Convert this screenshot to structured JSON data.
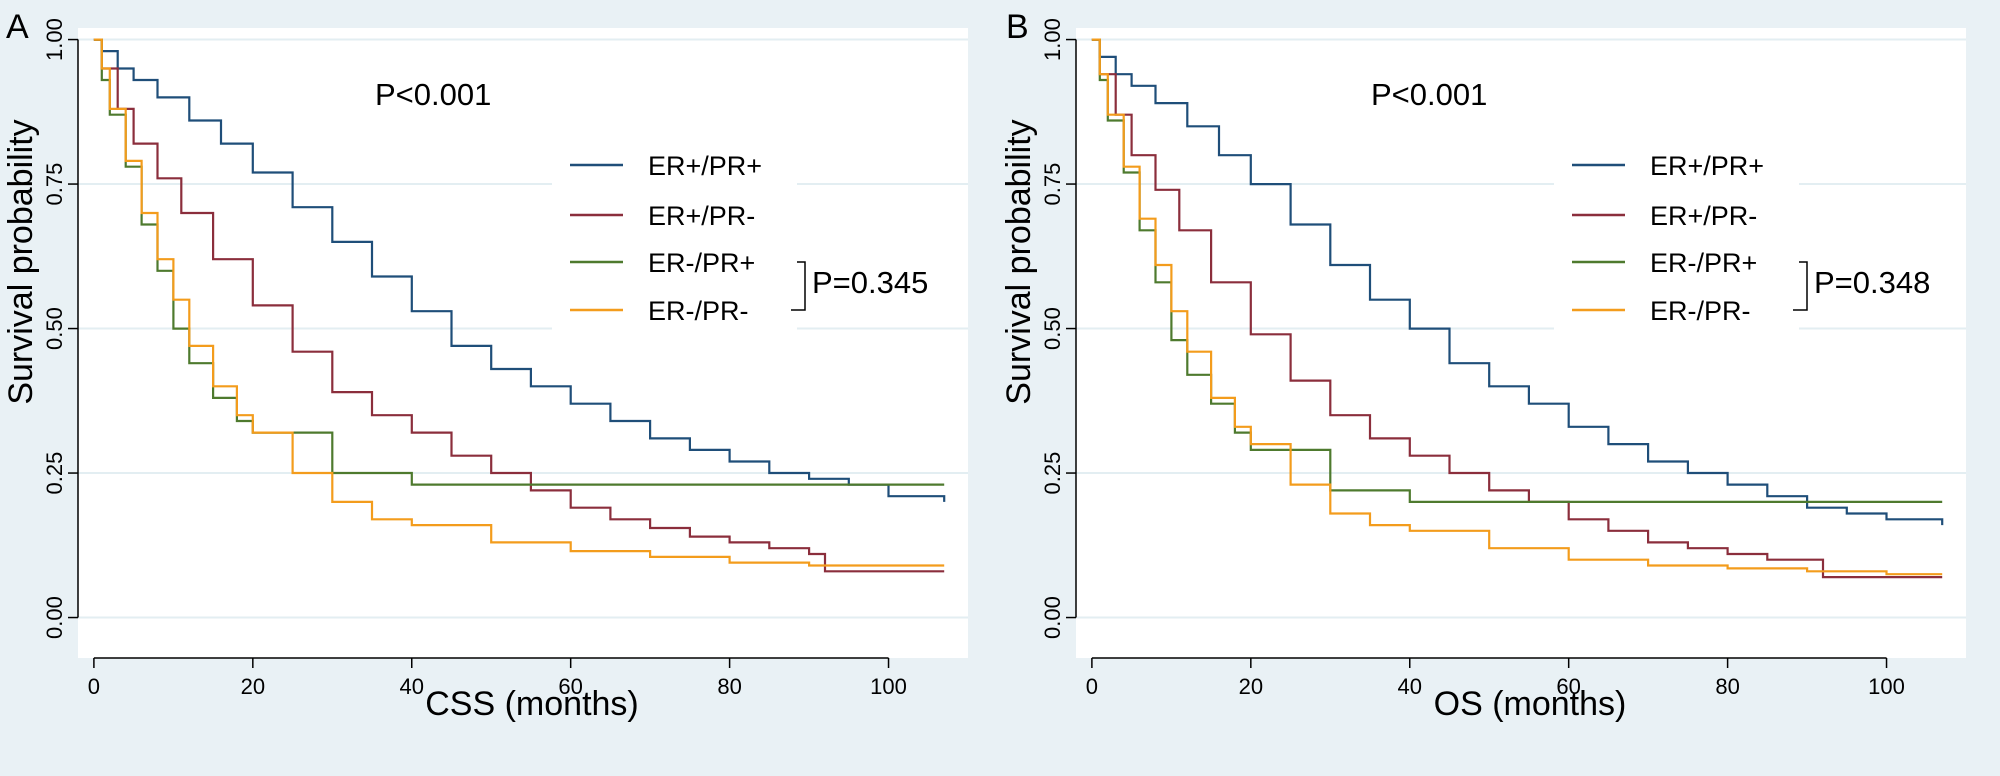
{
  "chart_data": [
    {
      "type": "line",
      "panel_label": "A",
      "xlabel": "CSS (months)",
      "ylabel": "Survival probability",
      "xlim": [
        -2,
        110
      ],
      "ylim": [
        -0.07,
        1.02
      ],
      "xticks": [
        0,
        20,
        40,
        60,
        80,
        100
      ],
      "xtick_labels": [
        "0",
        "20",
        "40",
        "60",
        "80",
        "100"
      ],
      "yticks": [
        0,
        0.25,
        0.5,
        0.75,
        1.0
      ],
      "ytick_labels": [
        "0.00",
        "0.25",
        "0.50",
        "0.75",
        "1.00"
      ],
      "grid": true,
      "legend_position": "right",
      "p_overall": "P<0.001",
      "p_pair": "P=0.345",
      "series": [
        {
          "name": "ER+/PR+",
          "color": "#1f4e79",
          "x": [
            0,
            1,
            3,
            5,
            8,
            12,
            16,
            20,
            25,
            30,
            35,
            40,
            45,
            50,
            55,
            60,
            65,
            70,
            75,
            80,
            85,
            90,
            95,
            100,
            107
          ],
          "y": [
            1.0,
            0.98,
            0.95,
            0.93,
            0.9,
            0.86,
            0.82,
            0.77,
            0.71,
            0.65,
            0.59,
            0.53,
            0.47,
            0.43,
            0.4,
            0.37,
            0.34,
            0.31,
            0.29,
            0.27,
            0.25,
            0.24,
            0.23,
            0.21,
            0.2
          ]
        },
        {
          "name": "ER+/PR-",
          "color": "#8b2e3c",
          "x": [
            0,
            1,
            3,
            5,
            8,
            11,
            15,
            20,
            25,
            30,
            35,
            40,
            45,
            50,
            55,
            60,
            65,
            70,
            75,
            80,
            85,
            90,
            92,
            100,
            107
          ],
          "y": [
            1.0,
            0.95,
            0.88,
            0.82,
            0.76,
            0.7,
            0.62,
            0.54,
            0.46,
            0.39,
            0.35,
            0.32,
            0.28,
            0.25,
            0.22,
            0.19,
            0.17,
            0.155,
            0.14,
            0.13,
            0.12,
            0.11,
            0.08,
            0.08,
            0.08
          ]
        },
        {
          "name": "ER-/PR+",
          "color": "#4e7a2e",
          "x": [
            0,
            1,
            2,
            4,
            6,
            8,
            10,
            12,
            15,
            18,
            20,
            25,
            30,
            35,
            40,
            50,
            60,
            70,
            80,
            90,
            100,
            107
          ],
          "y": [
            1.0,
            0.93,
            0.87,
            0.78,
            0.68,
            0.6,
            0.5,
            0.44,
            0.38,
            0.34,
            0.32,
            0.32,
            0.25,
            0.25,
            0.23,
            0.23,
            0.23,
            0.23,
            0.23,
            0.23,
            0.23,
            0.23
          ]
        },
        {
          "name": "ER-/PR-",
          "color": "#f39c1c",
          "x": [
            0,
            1,
            2,
            4,
            6,
            8,
            10,
            12,
            15,
            18,
            20,
            25,
            30,
            35,
            40,
            50,
            60,
            70,
            80,
            90,
            100,
            107
          ],
          "y": [
            1.0,
            0.95,
            0.88,
            0.79,
            0.7,
            0.62,
            0.55,
            0.47,
            0.4,
            0.35,
            0.32,
            0.25,
            0.2,
            0.17,
            0.16,
            0.13,
            0.115,
            0.105,
            0.095,
            0.09,
            0.09,
            0.09
          ]
        }
      ]
    },
    {
      "type": "line",
      "panel_label": "B",
      "xlabel": "OS (months)",
      "ylabel": "Survival probability",
      "xlim": [
        -2,
        110
      ],
      "ylim": [
        -0.07,
        1.02
      ],
      "xticks": [
        0,
        20,
        40,
        60,
        80,
        100
      ],
      "xtick_labels": [
        "0",
        "20",
        "40",
        "60",
        "80",
        "100"
      ],
      "yticks": [
        0,
        0.25,
        0.5,
        0.75,
        1.0
      ],
      "ytick_labels": [
        "0.00",
        "0.25",
        "0.50",
        "0.75",
        "1.00"
      ],
      "grid": true,
      "legend_position": "right",
      "p_overall": "P<0.001",
      "p_pair": "P=0.348",
      "series": [
        {
          "name": "ER+/PR+",
          "color": "#1f4e79",
          "x": [
            0,
            1,
            3,
            5,
            8,
            12,
            16,
            20,
            25,
            30,
            35,
            40,
            45,
            50,
            55,
            60,
            65,
            70,
            75,
            80,
            85,
            90,
            95,
            100,
            107
          ],
          "y": [
            1.0,
            0.97,
            0.94,
            0.92,
            0.89,
            0.85,
            0.8,
            0.75,
            0.68,
            0.61,
            0.55,
            0.5,
            0.44,
            0.4,
            0.37,
            0.33,
            0.3,
            0.27,
            0.25,
            0.23,
            0.21,
            0.19,
            0.18,
            0.17,
            0.16
          ]
        },
        {
          "name": "ER+/PR-",
          "color": "#8b2e3c",
          "x": [
            0,
            1,
            3,
            5,
            8,
            11,
            15,
            20,
            25,
            30,
            35,
            40,
            45,
            50,
            55,
            60,
            65,
            70,
            75,
            80,
            85,
            90,
            92,
            100,
            107
          ],
          "y": [
            1.0,
            0.94,
            0.87,
            0.8,
            0.74,
            0.67,
            0.58,
            0.49,
            0.41,
            0.35,
            0.31,
            0.28,
            0.25,
            0.22,
            0.2,
            0.17,
            0.15,
            0.13,
            0.12,
            0.11,
            0.1,
            0.1,
            0.07,
            0.07,
            0.07
          ]
        },
        {
          "name": "ER-/PR+",
          "color": "#4e7a2e",
          "x": [
            0,
            1,
            2,
            4,
            6,
            8,
            10,
            12,
            15,
            18,
            20,
            25,
            30,
            35,
            40,
            50,
            60,
            70,
            80,
            90,
            100,
            107
          ],
          "y": [
            1.0,
            0.93,
            0.86,
            0.77,
            0.67,
            0.58,
            0.48,
            0.42,
            0.37,
            0.32,
            0.29,
            0.29,
            0.22,
            0.22,
            0.2,
            0.2,
            0.2,
            0.2,
            0.2,
            0.2,
            0.2,
            0.2
          ]
        },
        {
          "name": "ER-/PR-",
          "color": "#f39c1c",
          "x": [
            0,
            1,
            2,
            4,
            6,
            8,
            10,
            12,
            15,
            18,
            20,
            25,
            30,
            35,
            40,
            50,
            60,
            70,
            80,
            90,
            100,
            107
          ],
          "y": [
            1.0,
            0.94,
            0.87,
            0.78,
            0.69,
            0.61,
            0.53,
            0.46,
            0.38,
            0.33,
            0.3,
            0.23,
            0.18,
            0.16,
            0.15,
            0.12,
            0.1,
            0.09,
            0.085,
            0.08,
            0.075,
            0.075
          ]
        }
      ]
    }
  ]
}
